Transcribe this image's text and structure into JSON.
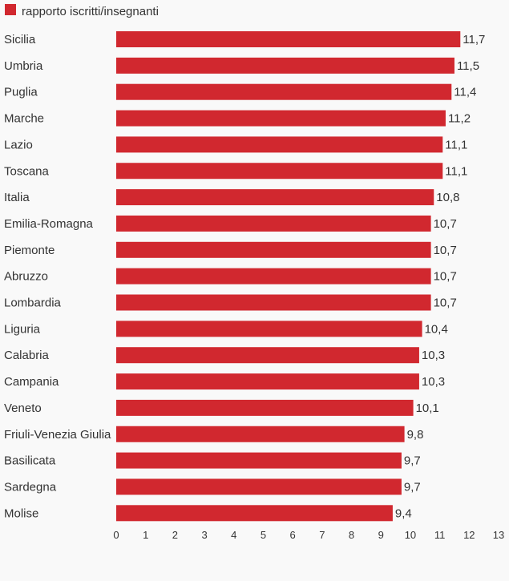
{
  "chart_data": {
    "type": "bar",
    "orientation": "horizontal",
    "legend": {
      "position": "top-left",
      "entries": [
        "rapporto iscritti/insegnanti"
      ]
    },
    "series": [
      {
        "name": "rapporto iscritti/insegnanti",
        "color": "#d1282f",
        "values": [
          11.7,
          11.5,
          11.4,
          11.2,
          11.1,
          11.1,
          10.8,
          10.7,
          10.7,
          10.7,
          10.7,
          10.4,
          10.3,
          10.3,
          10.1,
          9.8,
          9.7,
          9.7,
          9.4
        ],
        "value_labels": [
          "11,7",
          "11,5",
          "11,4",
          "11,2",
          "11,1",
          "11,1",
          "10,8",
          "10,7",
          "10,7",
          "10,7",
          "10,7",
          "10,4",
          "10,3",
          "10,3",
          "10,1",
          "9,8",
          "9,7",
          "9,7",
          "9,4"
        ]
      }
    ],
    "categories": [
      "Sicilia",
      "Umbria",
      "Puglia",
      "Marche",
      "Lazio",
      "Toscana",
      "Italia",
      "Emilia-Romagna",
      "Piemonte",
      "Abruzzo",
      "Lombardia",
      "Liguria",
      "Calabria",
      "Campania",
      "Veneto",
      "Friuli-Venezia Giulia",
      "Basilicata",
      "Sardegna",
      "Molise"
    ],
    "xlim": [
      0,
      13
    ],
    "xticks": [
      0,
      1,
      2,
      3,
      4,
      5,
      6,
      7,
      8,
      9,
      10,
      11,
      12,
      13
    ],
    "grid": false,
    "title": "",
    "xlabel": "",
    "ylabel": ""
  }
}
